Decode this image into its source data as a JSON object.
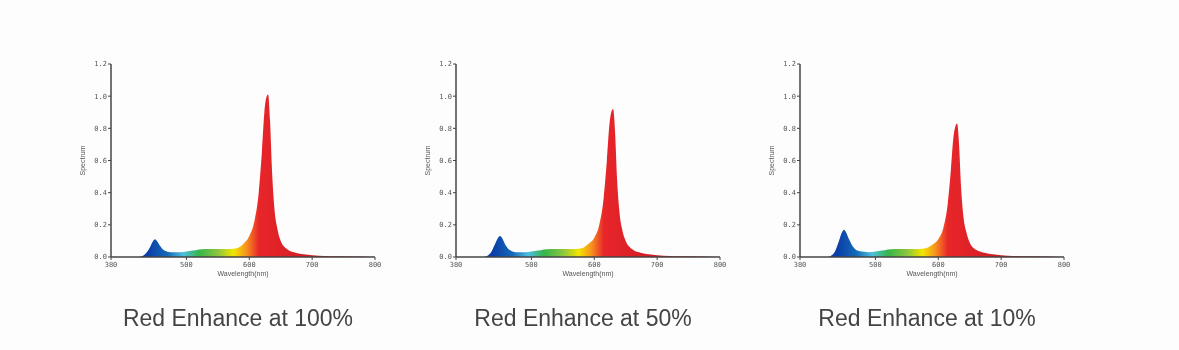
{
  "chart_data": [
    {
      "type": "area",
      "title": "Red Enhance at 100%",
      "xlabel": "Wavelength(nm)",
      "ylabel": "Spectrum",
      "xlim": [
        380,
        800
      ],
      "ylim": [
        0,
        1.2
      ],
      "xticks": [
        380,
        500,
        600,
        700,
        800
      ],
      "yticks": [
        {
          "value": 0,
          "label": "0.0"
        },
        {
          "value": 0.2,
          "label": "0.2"
        },
        {
          "value": 0.4,
          "label": "0.4"
        },
        {
          "value": 0.6,
          "label": "0.6"
        },
        {
          "value": 0.8,
          "label": "0.8"
        },
        {
          "value": 1,
          "label": "1.0"
        },
        {
          "value": 1.2,
          "label": "1.2"
        }
      ],
      "x": [
        425,
        435,
        442,
        447,
        450,
        453,
        458,
        465,
        475,
        490,
        510,
        530,
        550,
        570,
        580,
        590,
        600,
        608,
        615,
        620,
        624,
        627,
        630,
        633,
        636,
        640,
        645,
        650,
        660,
        675,
        690,
        710,
        750,
        800
      ],
      "values": [
        0,
        0.02,
        0.06,
        0.1,
        0.11,
        0.1,
        0.07,
        0.04,
        0.03,
        0.03,
        0.04,
        0.05,
        0.05,
        0.05,
        0.055,
        0.08,
        0.13,
        0.22,
        0.4,
        0.65,
        0.9,
        0.99,
        1.01,
        0.85,
        0.55,
        0.3,
        0.17,
        0.1,
        0.05,
        0.025,
        0.015,
        0.008,
        0.004,
        0
      ]
    },
    {
      "type": "area",
      "title": "Red Enhance at 50%",
      "xlabel": "Wavelength(nm)",
      "ylabel": "Spectrum",
      "xlim": [
        380,
        800
      ],
      "ylim": [
        0,
        1.2
      ],
      "xticks": [
        380,
        500,
        600,
        700,
        800
      ],
      "yticks": [
        {
          "value": 0,
          "label": "0.0"
        },
        {
          "value": 0.2,
          "label": "0.2"
        },
        {
          "value": 0.4,
          "label": "0.4"
        },
        {
          "value": 0.6,
          "label": "0.6"
        },
        {
          "value": 0.8,
          "label": "0.8"
        },
        {
          "value": 1,
          "label": "1.0"
        },
        {
          "value": 1.2,
          "label": "1.2"
        }
      ],
      "x": [
        425,
        435,
        442,
        447,
        450,
        453,
        458,
        465,
        475,
        490,
        510,
        530,
        550,
        570,
        580,
        590,
        600,
        608,
        615,
        620,
        624,
        627,
        630,
        633,
        636,
        640,
        645,
        650,
        660,
        675,
        690,
        710,
        750,
        800
      ],
      "values": [
        0,
        0.025,
        0.08,
        0.12,
        0.13,
        0.12,
        0.08,
        0.045,
        0.03,
        0.03,
        0.04,
        0.05,
        0.05,
        0.05,
        0.055,
        0.08,
        0.12,
        0.2,
        0.37,
        0.6,
        0.82,
        0.9,
        0.92,
        0.78,
        0.5,
        0.28,
        0.16,
        0.1,
        0.05,
        0.025,
        0.015,
        0.008,
        0.004,
        0
      ]
    },
    {
      "type": "area",
      "title": "Red Enhance at 10%",
      "xlabel": "Wavelength(nm)",
      "ylabel": "Spectrum",
      "xlim": [
        380,
        800
      ],
      "ylim": [
        0,
        1.2
      ],
      "xticks": [
        380,
        500,
        600,
        700,
        800
      ],
      "yticks": [
        {
          "value": 0,
          "label": "0.0"
        },
        {
          "value": 0.2,
          "label": "0.2"
        },
        {
          "value": 0.4,
          "label": "0.4"
        },
        {
          "value": 0.6,
          "label": "0.6"
        },
        {
          "value": 0.8,
          "label": "0.8"
        },
        {
          "value": 1,
          "label": "1.0"
        },
        {
          "value": 1.2,
          "label": "1.2"
        }
      ],
      "x": [
        425,
        435,
        442,
        447,
        450,
        453,
        458,
        465,
        475,
        490,
        510,
        530,
        550,
        570,
        580,
        590,
        600,
        608,
        615,
        620,
        624,
        627,
        630,
        633,
        636,
        640,
        645,
        650,
        660,
        675,
        690,
        710,
        750,
        800
      ],
      "values": [
        0,
        0.03,
        0.1,
        0.155,
        0.17,
        0.155,
        0.11,
        0.06,
        0.035,
        0.03,
        0.04,
        0.05,
        0.05,
        0.05,
        0.055,
        0.075,
        0.11,
        0.18,
        0.33,
        0.54,
        0.74,
        0.81,
        0.83,
        0.7,
        0.45,
        0.25,
        0.15,
        0.09,
        0.045,
        0.025,
        0.015,
        0.008,
        0.004,
        0
      ]
    }
  ]
}
